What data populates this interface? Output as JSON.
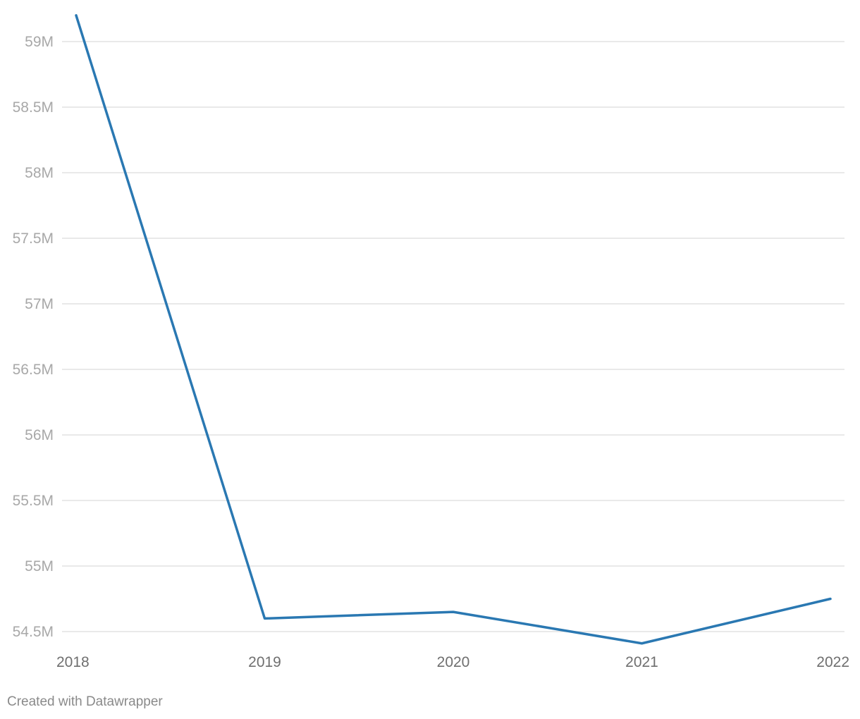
{
  "chart_data": {
    "type": "line",
    "x": [
      "2018",
      "2019",
      "2020",
      "2021",
      "2022"
    ],
    "series": [
      {
        "values": [
          59200000,
          54600000,
          54650000,
          54410000,
          54750000
        ],
        "color": "#2a78b2"
      }
    ],
    "ylim": [
      54500000,
      59000000
    ],
    "y_ticks": [
      54500000,
      55000000,
      55500000,
      56000000,
      56500000,
      57000000,
      57500000,
      58000000,
      58500000,
      59000000
    ],
    "y_tick_labels": [
      "54.5M",
      "55M",
      "55.5M",
      "56M",
      "56.5M",
      "57M",
      "57.5M",
      "58M",
      "58.5M",
      "59M"
    ],
    "grid": true,
    "legend": "none"
  },
  "footer": {
    "credit": "Created with Datawrapper"
  }
}
